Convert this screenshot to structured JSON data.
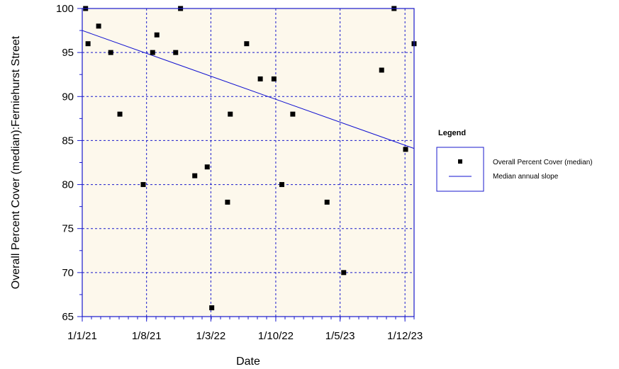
{
  "chart_data": {
    "type": "scatter",
    "xlabel": "Date",
    "ylabel": "Overall Percent Cover (median):Ferniehurst Street",
    "ylim": [
      65,
      100
    ],
    "yticks": [
      65,
      70,
      75,
      80,
      85,
      90,
      95,
      100
    ],
    "xlim": [
      "2021-01-01",
      "2023-12-31"
    ],
    "xticks": [
      {
        "date": "2021-01-01",
        "label": "1/1/21"
      },
      {
        "date": "2021-08-01",
        "label": "1/8/21"
      },
      {
        "date": "2022-03-01",
        "label": "1/3/22"
      },
      {
        "date": "2022-10-01",
        "label": "1/10/22"
      },
      {
        "date": "2023-05-01",
        "label": "1/5/23"
      },
      {
        "date": "2023-12-01",
        "label": "1/12/23"
      }
    ],
    "grid": true,
    "plot_background": "#fdf8ec",
    "grid_color": "#1a1acc",
    "series": [
      {
        "name": "Overall Percent Cover (median)",
        "type": "scatter",
        "color": "#000000",
        "points": [
          {
            "x": "2021-01-12",
            "y": 100
          },
          {
            "x": "2021-01-20",
            "y": 96
          },
          {
            "x": "2021-02-24",
            "y": 98
          },
          {
            "x": "2021-04-05",
            "y": 95
          },
          {
            "x": "2021-05-05",
            "y": 88
          },
          {
            "x": "2021-07-21",
            "y": 80
          },
          {
            "x": "2021-08-21",
            "y": 95
          },
          {
            "x": "2021-09-04",
            "y": 97
          },
          {
            "x": "2021-11-05",
            "y": 95
          },
          {
            "x": "2021-11-21",
            "y": 100
          },
          {
            "x": "2022-01-07",
            "y": 81
          },
          {
            "x": "2022-02-17",
            "y": 82
          },
          {
            "x": "2022-03-04",
            "y": 66
          },
          {
            "x": "2022-04-25",
            "y": 78
          },
          {
            "x": "2022-05-04",
            "y": 88
          },
          {
            "x": "2022-06-27",
            "y": 96
          },
          {
            "x": "2022-08-11",
            "y": 92
          },
          {
            "x": "2022-09-25",
            "y": 92
          },
          {
            "x": "2022-10-21",
            "y": 80
          },
          {
            "x": "2022-11-26",
            "y": 88
          },
          {
            "x": "2023-03-19",
            "y": 78
          },
          {
            "x": "2023-05-13",
            "y": 70
          },
          {
            "x": "2023-09-15",
            "y": 93
          },
          {
            "x": "2023-10-26",
            "y": 100
          },
          {
            "x": "2023-12-03",
            "y": 84
          },
          {
            "x": "2023-12-31",
            "y": 96
          }
        ]
      },
      {
        "name": "Median annual slope",
        "type": "line",
        "color": "#1010d0",
        "points": [
          {
            "x": "2021-01-01",
            "y": 97.5
          },
          {
            "x": "2023-12-31",
            "y": 84.1
          }
        ]
      }
    ],
    "legend": {
      "title": "Legend",
      "position": "right",
      "entries": [
        {
          "label": "Overall Percent Cover (median)",
          "marker": "square"
        },
        {
          "label": "Median annual slope",
          "marker": "line"
        }
      ]
    }
  }
}
